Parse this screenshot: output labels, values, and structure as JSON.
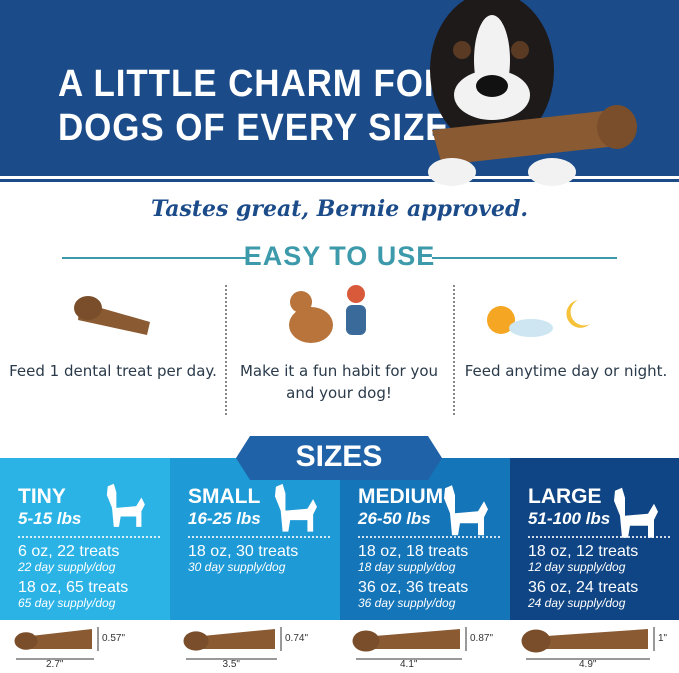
{
  "header": {
    "title_line1": "A LITTLE CHARM FOR",
    "title_line2": "DOGS OF EVERY SIZE"
  },
  "tagline": "Tastes great, Bernie approved.",
  "easy": {
    "heading": "EASY TO USE",
    "features": [
      {
        "icon": "dental-treat-icon",
        "text": "Feed 1 dental treat per day."
      },
      {
        "icon": "dog-high-five-icon",
        "text": "Make it a fun habit for you and your dog!"
      },
      {
        "icon": "sun-moon-icon",
        "text": "Feed anytime day or night."
      }
    ]
  },
  "sizes": {
    "heading": "SIZES",
    "columns": [
      {
        "name": "TINY",
        "weight": "5-15 lbs",
        "color": "#2bb3e6",
        "packs": [
          {
            "pack": "6 oz, 22 treats",
            "supply": "22 day supply/dog"
          },
          {
            "pack": "18 oz, 65 treats",
            "supply": "65 day supply/dog"
          }
        ],
        "height": "0.57\"",
        "length": "2.7\""
      },
      {
        "name": "SMALL",
        "weight": "16-25 lbs",
        "color": "#1e9ad6",
        "packs": [
          {
            "pack": "18 oz, 30 treats",
            "supply": "30 day supply/dog"
          }
        ],
        "height": "0.74\"",
        "length": "3.5\""
      },
      {
        "name": "MEDIUM",
        "weight": "26-50 lbs",
        "color": "#1475b9",
        "packs": [
          {
            "pack": "18 oz, 18 treats",
            "supply": "18 day supply/dog"
          },
          {
            "pack": "36 oz, 36 treats",
            "supply": "36 day supply/dog"
          }
        ],
        "height": "0.87\"",
        "length": "4.1\""
      },
      {
        "name": "LARGE",
        "weight": "51-100 lbs",
        "color": "#0f4584",
        "packs": [
          {
            "pack": "18 oz, 12 treats",
            "supply": "12 day supply/dog"
          },
          {
            "pack": "36 oz, 24 treats",
            "supply": "24 day supply/dog"
          }
        ],
        "height": "1\"",
        "length": "4.9\""
      }
    ]
  }
}
